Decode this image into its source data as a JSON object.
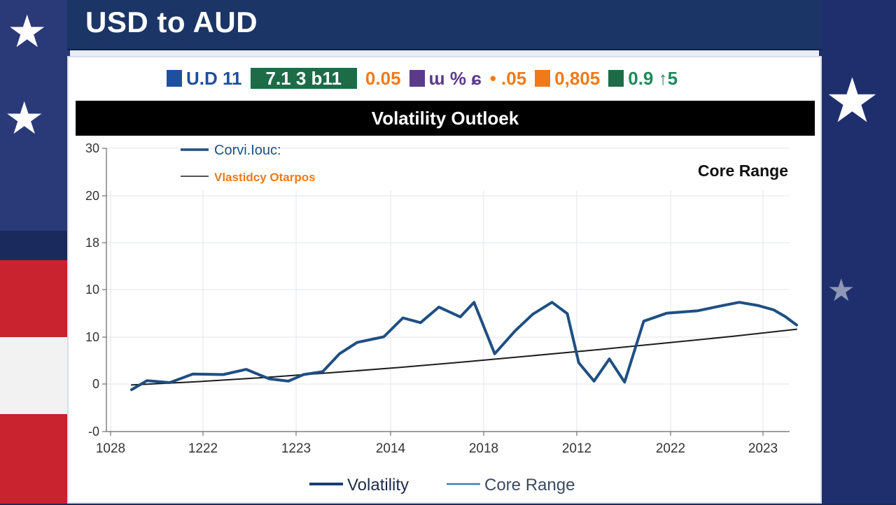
{
  "page": {
    "title": "USD to AUD"
  },
  "ticker": [
    {
      "text": "U.D 11",
      "color": "#1f4fa0",
      "swatch": "#1f4fa0",
      "boxed": false
    },
    {
      "text": "7.1 3 b11",
      "color": "#ffffff",
      "swatch": "#1e6b48",
      "boxed": true
    },
    {
      "text": "0.05",
      "color": "#f07a1a",
      "swatch": "",
      "boxed": false
    },
    {
      "text": "ɯ % ɕ",
      "color": "#5b3a8a",
      "swatch": "#5b3a8a",
      "boxed": false
    },
    {
      "text": "• .05",
      "color": "#f07a1a",
      "swatch": "",
      "boxed": false
    },
    {
      "text": "0,805",
      "color": "#f07a1a",
      "swatch": "#f07a1a",
      "boxed": false
    },
    {
      "text": "0.9 ↑5",
      "color": "#1e8a5a",
      "swatch": "#1e6b48",
      "boxed": false
    }
  ],
  "chart_data": {
    "type": "line",
    "title": "Volatility Outloek",
    "annotation": "Core Range",
    "top_legend": [
      {
        "label": "Corvi.Iouc:",
        "color": "#1f4f82"
      },
      {
        "label": "Vlastidcy Otarpos",
        "color": "#f07a1a"
      }
    ],
    "bottom_legend": [
      {
        "label": "Volatility",
        "color": "#173e73"
      },
      {
        "label": "Core Range",
        "color": "#3a7fb8"
      }
    ],
    "y_ticks": [
      "30",
      "20",
      "18",
      "10",
      "10",
      "0",
      "-0"
    ],
    "x_ticks": [
      "1028",
      "1222",
      "1223",
      "2014",
      "2018",
      "2012",
      "2022",
      "2023"
    ],
    "grid": true,
    "series": [
      {
        "name": "Volatility",
        "color": "#1f4f82",
        "x": [
          0.0,
          0.2,
          0.5,
          0.8,
          1.2,
          1.5,
          1.8,
          2.05,
          2.25,
          2.5,
          2.72,
          2.95,
          3.3,
          3.55,
          3.78,
          4.02,
          4.3,
          4.48,
          4.75,
          5.02,
          5.25,
          5.5,
          5.7,
          5.85,
          6.05,
          6.25,
          6.45,
          6.7,
          7.0,
          7.4,
          7.7,
          7.95,
          8.2,
          8.4,
          8.55,
          8.7
        ],
        "y": [
          -1.2,
          0.7,
          0.3,
          2.1,
          2.0,
          3.1,
          1.1,
          0.6,
          2.0,
          2.6,
          6.4,
          8.8,
          10.0,
          14.0,
          13.0,
          16.3,
          14.2,
          17.3,
          6.4,
          11.3,
          14.8,
          17.3,
          14.9,
          4.5,
          0.6,
          5.3,
          0.4,
          13.3,
          15.0,
          15.5,
          16.5,
          17.3,
          16.6,
          15.7,
          14.3,
          12.5
        ]
      },
      {
        "name": "Core Range",
        "color": "#1c1c1c",
        "x": [
          0.0,
          0.87,
          1.75,
          2.62,
          3.5,
          4.37,
          5.25,
          6.12,
          7.0,
          7.87,
          8.7
        ],
        "y": [
          -0.2,
          0.5,
          1.4,
          2.4,
          3.5,
          4.7,
          6.0,
          7.3,
          8.7,
          10.1,
          11.6
        ]
      }
    ]
  }
}
